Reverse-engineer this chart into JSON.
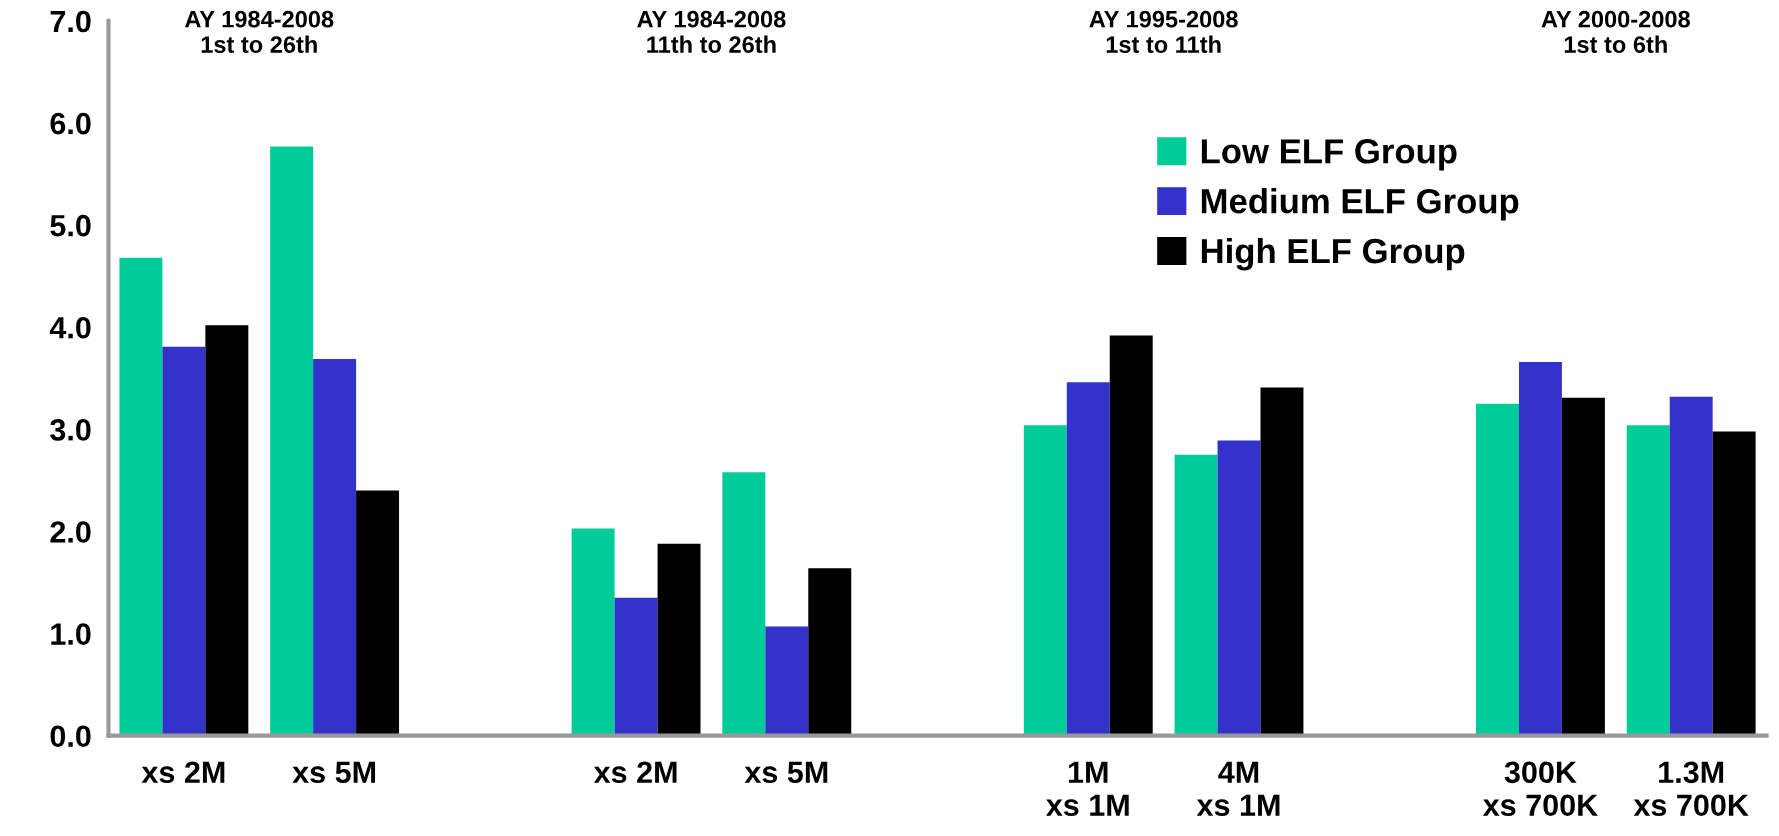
{
  "chart_data": {
    "type": "bar",
    "categories": [
      "xs 2M",
      "xs 5M",
      null,
      "xs 2M",
      "xs 5M",
      null,
      "1M\nxs 1M",
      "4M\nxs 1M",
      null,
      "300K\nxs 700K",
      "1.3M\nxs 700K"
    ],
    "series": [
      {
        "name": "Low ELF Group",
        "color": "#00cc99",
        "values": [
          4.68,
          5.77,
          null,
          2.03,
          2.58,
          null,
          3.04,
          2.75,
          null,
          3.25,
          3.04
        ]
      },
      {
        "name": "Medium ELF Group",
        "color": "#3333cc",
        "values": [
          3.81,
          3.69,
          null,
          1.35,
          1.07,
          null,
          3.46,
          2.89,
          null,
          3.66,
          3.32
        ]
      },
      {
        "name": "High ELF Group",
        "color": "#000000",
        "values": [
          4.02,
          2.4,
          null,
          1.88,
          1.64,
          null,
          3.92,
          3.41,
          null,
          3.31,
          2.98
        ]
      }
    ],
    "annotations": [
      "AY 1984-2008\n1st to 26th",
      "AY 1984-2008\n11th to 26th",
      "AY 1995-2008\n1st to 11th",
      "AY 2000-2008\n1st to 6th"
    ],
    "ylim": [
      0,
      7
    ],
    "yticks": [
      {
        "value": 0,
        "label": "0.0"
      },
      {
        "value": 1,
        "label": "1.0"
      },
      {
        "value": 2,
        "label": "2.0"
      },
      {
        "value": 3,
        "label": "3.0"
      },
      {
        "value": 4,
        "label": "4.0"
      },
      {
        "value": 5,
        "label": "5.0"
      },
      {
        "value": 6,
        "label": "6.0"
      },
      {
        "value": 7,
        "label": "7.0"
      }
    ],
    "grid": false,
    "legend": "top right"
  }
}
